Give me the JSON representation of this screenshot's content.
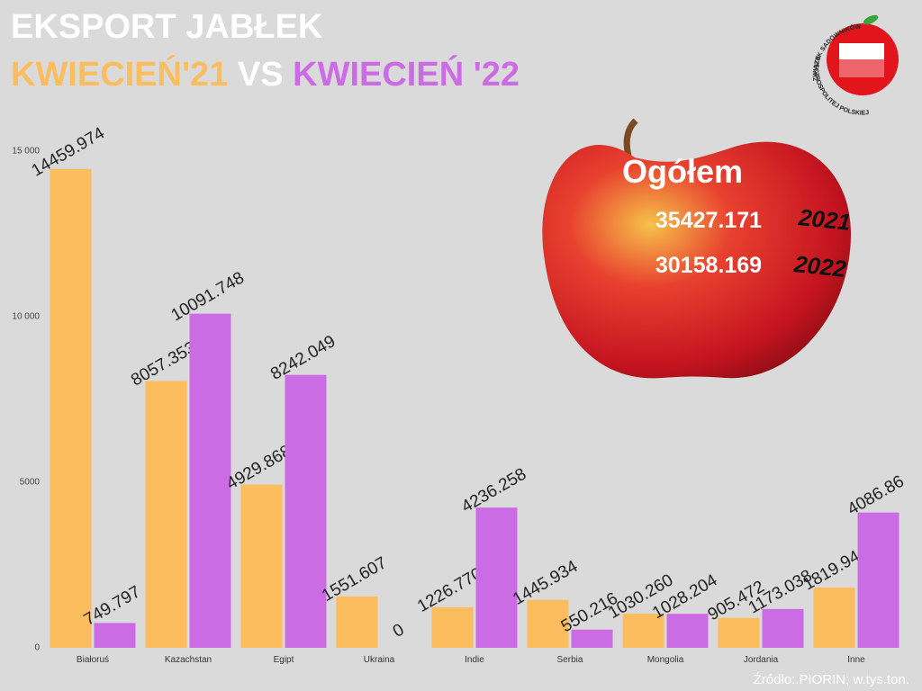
{
  "chart_data": {
    "type": "bar",
    "title": "EKSPORT JABŁEK",
    "subtitle": {
      "left": "KWIECIEŃ'21",
      "middle": "VS",
      "right": "KWIECIEŃ '22"
    },
    "categories": [
      "Białoruś",
      "Kazachstan",
      "Egipt",
      "Ukraina",
      "Indie",
      "Serbia",
      "Mongolia",
      "Jordania",
      "Inne"
    ],
    "series": [
      {
        "color": "#fbbd5e",
        "values": [
          14459.974,
          8057.353,
          4929.868,
          1551.607,
          1226.77,
          1445.934,
          1030.26,
          905.472,
          1819.94
        ],
        "value_labels": [
          "14459.974",
          "8057.353",
          "4929.868",
          "1551.607",
          "1226.770",
          "1445.934",
          "1030.260",
          "905.472",
          "1819.94"
        ]
      },
      {
        "color": "#cc6ce4",
        "values": [
          749.797,
          10091.748,
          8242.049,
          0,
          4236.258,
          550.216,
          1028.204,
          1173.038,
          4086.86
        ],
        "value_labels": [
          "749.797",
          "10091.748",
          "8242.049",
          "0",
          "4236.258",
          "550.216",
          "1028.204",
          "1173.038",
          "4086.86"
        ]
      }
    ],
    "ylim": [
      0,
      15000
    ],
    "yticks": [
      0,
      {
        "value": 5000,
        "label": "5000"
      },
      {
        "value": 10000,
        "label": "10 000"
      },
      {
        "value": 15000,
        "label": "15 000"
      }
    ],
    "grid": false,
    "annotations": {
      "heading": "Ogółem",
      "total_2021": 35427.171,
      "year_2021": 2021,
      "total_2022": 30158.169,
      "year_2022": 2022
    },
    "source": "Źródło:.PIORIN; w.tys.ton.",
    "logo": {
      "top": "ZWIĄZEK SADOWNIKÓW",
      "bottom": "RZECZPOSPOLITEJ POLSKIEJ"
    }
  }
}
